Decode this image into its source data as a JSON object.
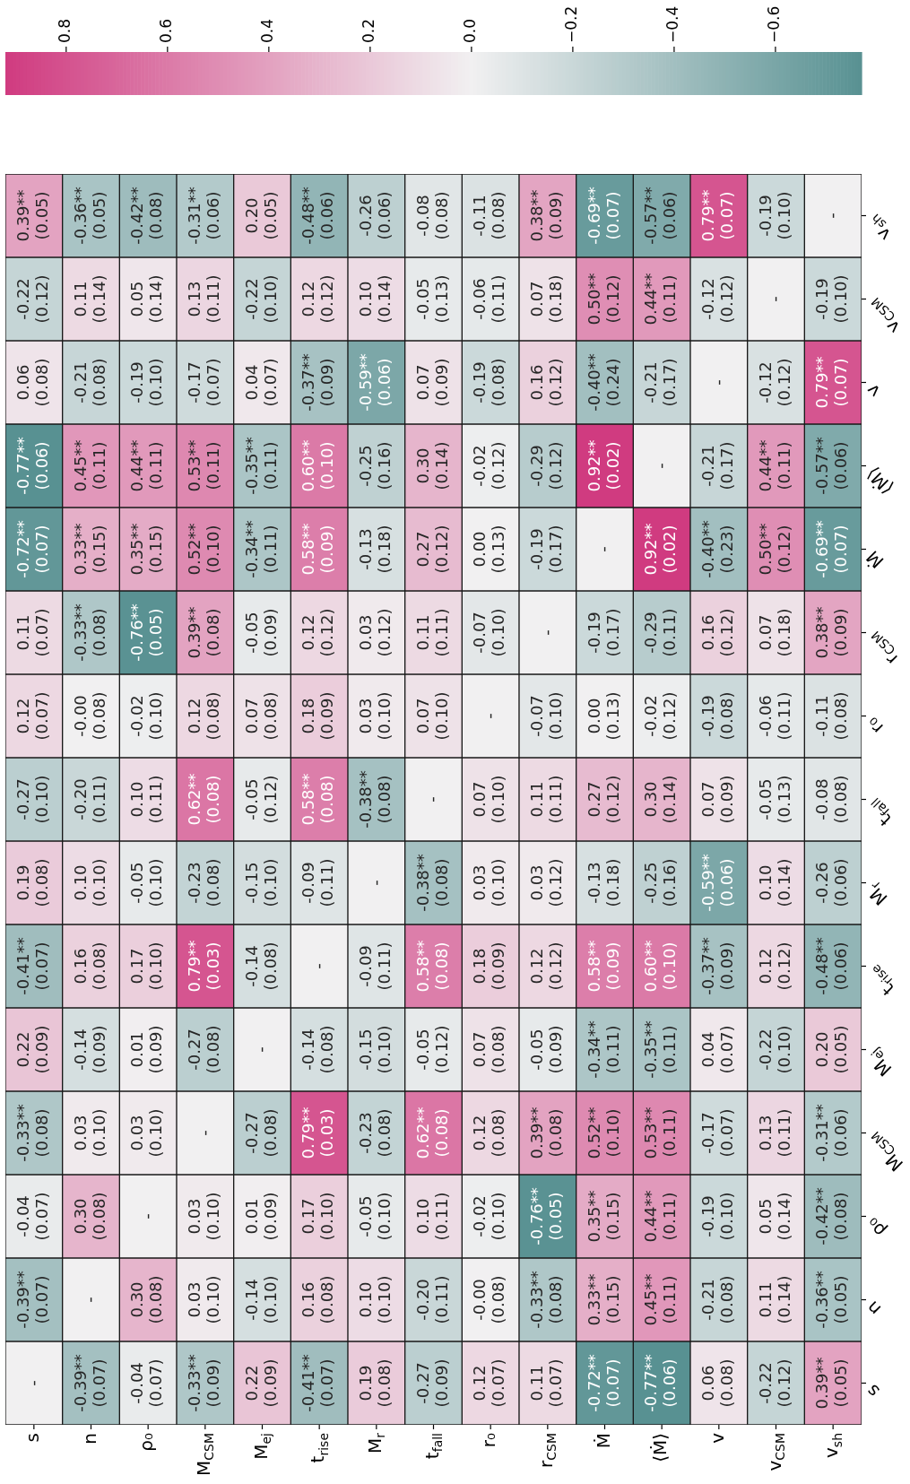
{
  "chart_data": {
    "type": "heatmap",
    "categories": [
      "s",
      "n",
      "ρ₀",
      "M$_{CSM}$",
      "M$_{ej}$",
      "t$_{rise}$",
      "M$_{r}$",
      "t$_{fall}$",
      "r₀",
      "r$_{CSM}$",
      "Ṁ",
      "⟨Ṁ⟩",
      "v",
      "v$_{CSM}$",
      "v$_{sh}$"
    ],
    "y_categories": [
      "v$_{sh}$",
      "v$_{CSM}$",
      "v",
      "⟨Ṁ⟩",
      "Ṁ",
      "r$_{CSM}$",
      "r₀",
      "t$_{fall}$",
      "M$_{r}$",
      "t$_{rise}$",
      "M$_{ej}$",
      "M$_{CSM}$",
      "ρ₀",
      "n",
      "s"
    ],
    "cells": [
      [
        0.39,
        -0.36,
        -0.42,
        -0.31,
        0.2,
        -0.48,
        -0.26,
        -0.08,
        -0.11,
        0.38,
        -0.69,
        -0.57,
        0.79,
        -0.19,
        null
      ],
      [
        -0.22,
        0.11,
        0.05,
        0.13,
        -0.22,
        0.12,
        0.1,
        -0.05,
        -0.06,
        0.07,
        0.5,
        0.44,
        -0.12,
        null,
        -0.19
      ],
      [
        0.06,
        -0.21,
        -0.19,
        -0.17,
        0.04,
        -0.37,
        -0.59,
        0.07,
        -0.19,
        0.16,
        -0.4,
        -0.21,
        null,
        -0.12,
        0.79
      ],
      [
        -0.77,
        0.45,
        0.44,
        0.53,
        -0.35,
        0.6,
        -0.25,
        0.3,
        -0.02,
        -0.29,
        0.92,
        null,
        -0.21,
        0.44,
        -0.57
      ],
      [
        -0.72,
        0.33,
        0.35,
        0.52,
        -0.34,
        0.58,
        -0.13,
        0.27,
        0.0,
        -0.19,
        null,
        0.92,
        -0.4,
        0.5,
        -0.69
      ],
      [
        0.11,
        -0.33,
        -0.76,
        0.39,
        -0.05,
        0.12,
        0.03,
        0.11,
        -0.07,
        null,
        -0.19,
        -0.29,
        0.16,
        0.07,
        0.38
      ],
      [
        0.12,
        0,
        -0.02,
        0.12,
        0.07,
        0.18,
        0.03,
        0.07,
        null,
        -0.07,
        0.0,
        -0.02,
        -0.19,
        -0.06,
        -0.11
      ],
      [
        -0.27,
        -0.2,
        0.1,
        0.62,
        -0.05,
        0.58,
        -0.38,
        null,
        0.07,
        0.11,
        0.27,
        0.3,
        0.07,
        -0.05,
        -0.08
      ],
      [
        0.19,
        0.1,
        -0.05,
        -0.23,
        -0.15,
        -0.09,
        null,
        -0.38,
        0.03,
        0.03,
        -0.13,
        -0.25,
        -0.59,
        0.1,
        -0.26
      ],
      [
        -0.41,
        0.16,
        0.17,
        0.79,
        -0.14,
        null,
        -0.09,
        0.58,
        0.18,
        0.12,
        0.58,
        0.6,
        -0.37,
        0.12,
        -0.48
      ],
      [
        0.22,
        -0.14,
        0.01,
        -0.27,
        null,
        -0.14,
        -0.15,
        -0.05,
        0.07,
        -0.05,
        -0.34,
        -0.35,
        0.04,
        -0.22,
        0.2
      ],
      [
        -0.33,
        0.03,
        0.03,
        null,
        -0.27,
        0.79,
        -0.23,
        0.62,
        0.12,
        0.39,
        0.52,
        0.53,
        -0.17,
        0.13,
        -0.31
      ],
      [
        -0.04,
        0.3,
        null,
        0.03,
        0.01,
        0.17,
        -0.05,
        0.1,
        -0.02,
        -0.76,
        0.35,
        0.44,
        -0.19,
        0.05,
        -0.42
      ],
      [
        -0.39,
        null,
        0.3,
        0.03,
        -0.14,
        0.16,
        0.1,
        -0.2,
        0,
        -0.33,
        0.33,
        0.45,
        -0.21,
        0.11,
        -0.36
      ],
      [
        null,
        -0.39,
        -0.04,
        -0.33,
        0.22,
        -0.41,
        0.19,
        -0.27,
        0.12,
        0.11,
        -0.72,
        -0.77,
        0.06,
        -0.22,
        0.39
      ]
    ],
    "cell_labels": [
      [
        "0.39**\n(0.05)",
        "-0.36**\n(0.05)",
        "-0.42**\n(0.08)",
        "-0.31**\n(0.06)",
        "0.20\n(0.05)",
        "-0.48**\n(0.06)",
        "-0.26\n(0.06)",
        "-0.08\n(0.08)",
        "-0.11\n(0.08)",
        "0.38**\n(0.09)",
        "-0.69**\n(0.07)",
        "-0.57**\n(0.06)",
        "0.79**\n(0.07)",
        "-0.19\n(0.10)",
        "-"
      ],
      [
        "-0.22\n(0.12)",
        "0.11\n(0.14)",
        "0.05\n(0.14)",
        "0.13\n(0.11)",
        "-0.22\n(0.10)",
        "0.12\n(0.12)",
        "0.10\n(0.14)",
        "-0.05\n(0.13)",
        "-0.06\n(0.11)",
        "0.07\n(0.18)",
        "0.50**\n(0.12)",
        "0.44**\n(0.11)",
        "-0.12\n(0.12)",
        "-",
        "-0.19\n(0.10)"
      ],
      [
        "0.06\n(0.08)",
        "-0.21\n(0.08)",
        "-0.19\n(0.10)",
        "-0.17\n(0.07)",
        "0.04\n(0.07)",
        "-0.37**\n(0.09)",
        "-0.59**\n(0.06)",
        "0.07\n(0.09)",
        "-0.19\n(0.08)",
        "0.16\n(0.12)",
        "-0.40**\n(0.24)",
        "-0.21\n(0.17)",
        "-",
        "-0.12\n(0.12)",
        "0.79**\n(0.07)"
      ],
      [
        "-0.77**\n(0.06)",
        "0.45**\n(0.11)",
        "0.44**\n(0.11)",
        "0.53**\n(0.11)",
        "-0.35**\n(0.11)",
        "0.60**\n(0.10)",
        "-0.25\n(0.16)",
        "0.30\n(0.14)",
        "-0.02\n(0.12)",
        "-0.29\n(0.12)",
        "0.92**\n(0.02)",
        "-",
        "-0.21\n(0.17)",
        "0.44**\n(0.11)",
        "-0.57**\n(0.06)"
      ],
      [
        "-0.72**\n(0.07)",
        "0.33**\n(0.15)",
        "0.35**\n(0.15)",
        "0.52**\n(0.10)",
        "-0.34**\n(0.11)",
        "0.58**\n(0.09)",
        "-0.13\n(0.18)",
        "0.27\n(0.12)",
        "0.00\n(0.13)",
        "-0.19\n(0.17)",
        "-",
        "0.92**\n(0.02)",
        "-0.40**\n(0.23)",
        "0.50**\n(0.12)",
        "-0.69**\n(0.07)"
      ],
      [
        "0.11\n(0.07)",
        "-0.33**\n(0.08)",
        "-0.76**\n(0.05)",
        "0.39**\n(0.08)",
        "-0.05\n(0.09)",
        "0.12\n(0.12)",
        "0.03\n(0.12)",
        "0.11\n(0.11)",
        "-0.07\n(0.10)",
        "-",
        "-0.19\n(0.17)",
        "-0.29\n(0.11)",
        "0.16\n(0.12)",
        "0.07\n(0.18)",
        "0.38**\n(0.09)"
      ],
      [
        "0.12\n(0.07)",
        "-0.00\n(0.08)",
        "-0.02\n(0.10)",
        "0.12\n(0.08)",
        "0.07\n(0.08)",
        "0.18\n(0.09)",
        "0.03\n(0.10)",
        "0.07\n(0.10)",
        "-",
        "-0.07\n(0.10)",
        "0.00\n(0.13)",
        "-0.02\n(0.12)",
        "-0.19\n(0.08)",
        "-0.06\n(0.11)",
        "-0.11\n(0.08)"
      ],
      [
        "-0.27\n(0.10)",
        "-0.20\n(0.11)",
        "0.10\n(0.11)",
        "0.62**\n(0.08)",
        "-0.05\n(0.12)",
        "0.58**\n(0.08)",
        "-0.38**\n(0.08)",
        "-",
        "0.07\n(0.10)",
        "0.11\n(0.11)",
        "0.27\n(0.12)",
        "0.30\n(0.14)",
        "0.07\n(0.09)",
        "-0.05\n(0.13)",
        "-0.08\n(0.08)"
      ],
      [
        "0.19\n(0.08)",
        "0.10\n(0.10)",
        "-0.05\n(0.10)",
        "-0.23\n(0.08)",
        "-0.15\n(0.10)",
        "-0.09\n(0.11)",
        "-",
        "-0.38**\n(0.08)",
        "0.03\n(0.10)",
        "0.03\n(0.12)",
        "-0.13\n(0.18)",
        "-0.25\n(0.16)",
        "-0.59**\n(0.06)",
        "0.10\n(0.14)",
        "-0.26\n(0.06)"
      ],
      [
        "-0.41**\n(0.07)",
        "0.16\n(0.08)",
        "0.17\n(0.10)",
        "0.79**\n(0.03)",
        "-0.14\n(0.08)",
        "-",
        "-0.09\n(0.11)",
        "0.58**\n(0.08)",
        "0.18\n(0.09)",
        "0.12\n(0.12)",
        "0.58**\n(0.09)",
        "0.60**\n(0.10)",
        "-0.37**\n(0.09)",
        "0.12\n(0.12)",
        "-0.48**\n(0.06)"
      ],
      [
        "0.22\n(0.09)",
        "-0.14\n(0.09)",
        "0.01\n(0.09)",
        "-0.27\n(0.08)",
        "-",
        "-0.14\n(0.08)",
        "-0.15\n(0.10)",
        "-0.05\n(0.12)",
        "0.07\n(0.08)",
        "-0.05\n(0.09)",
        "-0.34**\n(0.11)",
        "-0.35**\n(0.11)",
        "0.04\n(0.07)",
        "-0.22\n(0.10)",
        "0.20\n(0.05)"
      ],
      [
        "-0.33**\n(0.08)",
        "0.03\n(0.10)",
        "0.03\n(0.10)",
        "-",
        "-0.27\n(0.08)",
        "0.79**\n(0.03)",
        "-0.23\n(0.08)",
        "0.62**\n(0.08)",
        "0.12\n(0.08)",
        "0.39**\n(0.08)",
        "0.52**\n(0.10)",
        "0.53**\n(0.11)",
        "-0.17\n(0.07)",
        "0.13\n(0.11)",
        "-0.31**\n(0.06)"
      ],
      [
        "-0.04\n(0.07)",
        "0.30\n(0.08)",
        "-",
        "0.03\n(0.10)",
        "0.01\n(0.09)",
        "0.17\n(0.10)",
        "-0.05\n(0.10)",
        "0.10\n(0.11)",
        "-0.02\n(0.10)",
        "-0.76**\n(0.05)",
        "0.35**\n(0.15)",
        "0.44**\n(0.11)",
        "-0.19\n(0.10)",
        "0.05\n(0.14)",
        "-0.42**\n(0.08)"
      ],
      [
        "-0.39**\n(0.07)",
        "-",
        "0.30\n(0.08)",
        "0.03\n(0.10)",
        "-0.14\n(0.10)",
        "0.16\n(0.08)",
        "0.10\n(0.10)",
        "-0.20\n(0.11)",
        "-0.00\n(0.08)",
        "-0.33**\n(0.08)",
        "0.33**\n(0.15)",
        "0.45**\n(0.11)",
        "-0.21\n(0.08)",
        "0.11\n(0.14)",
        "-0.36**\n(0.05)"
      ],
      [
        "-",
        "-0.39**\n(0.07)",
        "-0.04\n(0.07)",
        "-0.33**\n(0.09)",
        "0.22\n(0.09)",
        "-0.41**\n(0.07)",
        "0.19\n(0.08)",
        "-0.27\n(0.09)",
        "0.12\n(0.07)",
        "0.11\n(0.07)",
        "-0.72**\n(0.07)",
        "-0.77**\n(0.06)",
        "0.06\n(0.08)",
        "-0.22\n(0.12)",
        "0.39**\n(0.05)"
      ]
    ],
    "clim": [
      0.92,
      -0.77
    ],
    "cticks": [
      {
        "value": 0.8,
        "label": "0.8"
      },
      {
        "value": 0.6,
        "label": "0.6"
      },
      {
        "value": 0.4,
        "label": "0.4"
      },
      {
        "value": 0.2,
        "label": "0.2"
      },
      {
        "value": 0,
        "label": "0.0"
      },
      {
        "value": -0.2,
        "label": "−0.2"
      },
      {
        "value": -0.4,
        "label": "−0.4"
      },
      {
        "value": -0.6,
        "label": "−0.6"
      }
    ]
  }
}
